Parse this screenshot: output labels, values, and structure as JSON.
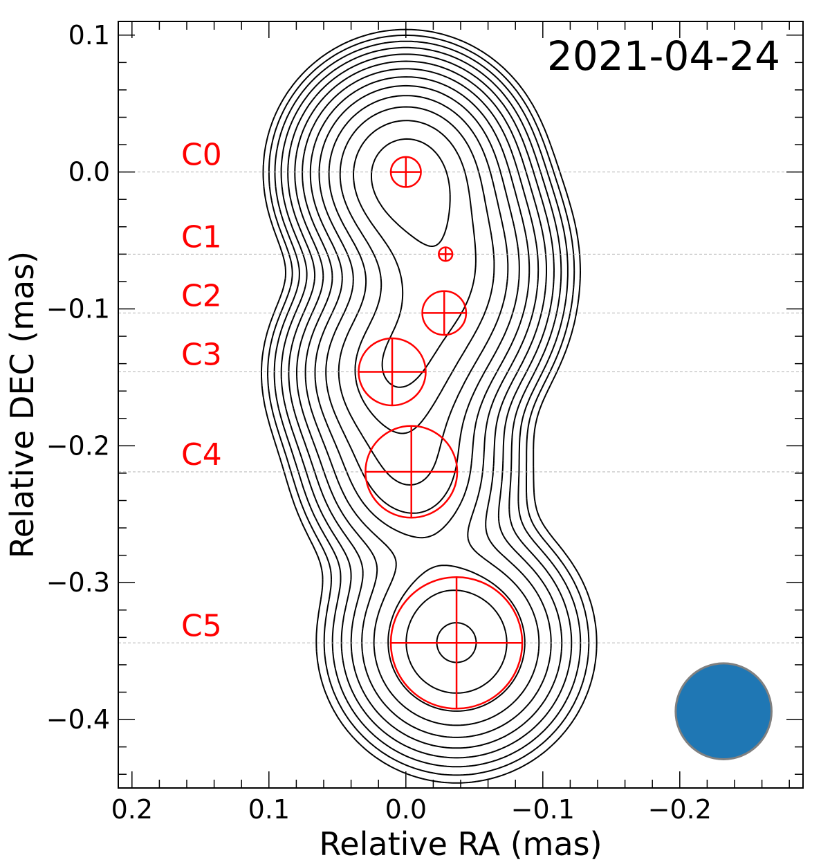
{
  "chart_data": {
    "type": "contour",
    "title": "",
    "annotation": "2021-04-24",
    "xlabel": "Relative RA (mas)",
    "ylabel": "Relative DEC (mas)",
    "xlim": [
      0.21,
      -0.29
    ],
    "ylim": [
      -0.45,
      0.11
    ],
    "x_inverted": true,
    "xticks": [
      0.2,
      0.1,
      0.0,
      -0.1,
      -0.2
    ],
    "xtick_labels": [
      "0.2",
      "0.1",
      "0.0",
      "−0.1",
      "−0.2"
    ],
    "yticks": [
      0.1,
      0.0,
      -0.1,
      -0.2,
      -0.3,
      -0.4
    ],
    "ytick_labels": [
      "0.1",
      "0.0",
      "−0.1",
      "−0.2",
      "−0.3",
      "−0.4"
    ],
    "grid": false,
    "contour_color": "#000000",
    "contour_levels": 14,
    "component_color": "#ff0000",
    "components": [
      {
        "name": "C0",
        "ra": 0.0,
        "dec": 0.0,
        "size": 0.022
      },
      {
        "name": "C1",
        "ra": -0.029,
        "dec": -0.06,
        "size": 0.01
      },
      {
        "name": "C2",
        "ra": -0.028,
        "dec": -0.103,
        "size": 0.032
      },
      {
        "name": "C3",
        "ra": 0.01,
        "dec": -0.146,
        "size": 0.049
      },
      {
        "name": "C4",
        "ra": -0.004,
        "dec": -0.219,
        "size": 0.067
      },
      {
        "name": "C5",
        "ra": -0.037,
        "dec": -0.344,
        "size": 0.096
      }
    ],
    "beam": {
      "ra": -0.232,
      "dec": -0.394,
      "size": 0.07,
      "color": "#1f77b4",
      "edge": "#808080"
    },
    "reference_line_color": "#b0b0b0"
  }
}
